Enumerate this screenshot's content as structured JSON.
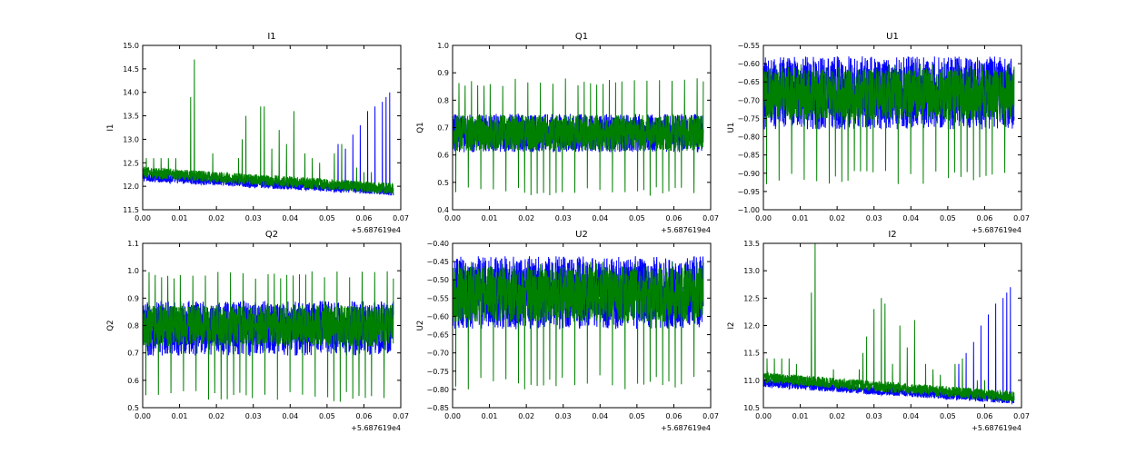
{
  "chart_data": [
    {
      "type": "line",
      "title": "I1",
      "xlabel": "",
      "ylabel": "I1",
      "xlim": [
        0.0,
        0.07
      ],
      "ylim": [
        11.5,
        15.0
      ],
      "x_ticks": [
        "0.00",
        "0.01",
        "0.02",
        "0.03",
        "0.04",
        "0.05",
        "0.06",
        "0.07"
      ],
      "y_ticks": [
        "11.5",
        "12.0",
        "12.5",
        "13.0",
        "13.5",
        "14.0",
        "14.5",
        "15.0"
      ],
      "x_offset": "+5.687619e4",
      "series": [
        {
          "name": "blue",
          "color": "#0000ff",
          "base_start": 12.2,
          "base_end": 11.9,
          "noise": 0.1,
          "spikes": [
            [
              0.053,
              12.9
            ],
            [
              0.055,
              12.8
            ],
            [
              0.057,
              13.1
            ],
            [
              0.059,
              13.3
            ],
            [
              0.061,
              13.6
            ],
            [
              0.063,
              13.7
            ],
            [
              0.065,
              13.8
            ],
            [
              0.066,
              13.9
            ],
            [
              0.067,
              14.0
            ]
          ]
        },
        {
          "name": "green",
          "color": "#008000",
          "base_start": 12.3,
          "base_end": 11.95,
          "noise": 0.12,
          "spikes": [
            [
              0.001,
              12.6
            ],
            [
              0.003,
              12.6
            ],
            [
              0.005,
              12.6
            ],
            [
              0.007,
              12.6
            ],
            [
              0.009,
              12.6
            ],
            [
              0.013,
              13.9
            ],
            [
              0.014,
              14.7
            ],
            [
              0.019,
              12.7
            ],
            [
              0.026,
              12.6
            ],
            [
              0.027,
              13.0
            ],
            [
              0.028,
              13.5
            ],
            [
              0.032,
              13.7
            ],
            [
              0.033,
              13.7
            ],
            [
              0.035,
              12.8
            ],
            [
              0.037,
              13.2
            ],
            [
              0.039,
              12.9
            ],
            [
              0.041,
              13.6
            ],
            [
              0.044,
              12.7
            ],
            [
              0.046,
              12.6
            ],
            [
              0.048,
              12.5
            ],
            [
              0.052,
              12.7
            ],
            [
              0.054,
              12.9
            ],
            [
              0.058,
              12.4
            ],
            [
              0.06,
              12.3
            ],
            [
              0.062,
              12.3
            ]
          ]
        }
      ]
    },
    {
      "type": "line",
      "title": "Q1",
      "xlabel": "",
      "ylabel": "Q1",
      "xlim": [
        0.0,
        0.07
      ],
      "ylim": [
        0.4,
        1.0
      ],
      "x_ticks": [
        "0.00",
        "0.01",
        "0.02",
        "0.03",
        "0.04",
        "0.05",
        "0.06",
        "0.07"
      ],
      "y_ticks": [
        "0.4",
        "0.5",
        "0.6",
        "0.7",
        "0.8",
        "0.9",
        "1.0"
      ],
      "x_offset": "+5.687619e4",
      "series": [
        {
          "name": "blue",
          "color": "#0000ff",
          "center": 0.68,
          "half_width": 0.07
        },
        {
          "name": "green",
          "color": "#008000",
          "center": 0.68,
          "half_width": 0.065,
          "spike_period": 0.0017,
          "spike_high": 0.88,
          "spike_low": 0.45
        }
      ]
    },
    {
      "type": "line",
      "title": "U1",
      "xlabel": "",
      "ylabel": "U1",
      "xlim": [
        0.0,
        0.07
      ],
      "ylim": [
        -1.0,
        -0.55
      ],
      "x_ticks": [
        "0.00",
        "0.01",
        "0.02",
        "0.03",
        "0.04",
        "0.05",
        "0.06",
        "0.07"
      ],
      "y_ticks": [
        "−1.00",
        "−0.95",
        "−0.90",
        "−0.85",
        "−0.80",
        "−0.75",
        "−0.70",
        "−0.65",
        "−0.60",
        "−0.55"
      ],
      "x_offset": "+5.687619e4",
      "series": [
        {
          "name": "blue",
          "color": "#0000ff",
          "center": -0.68,
          "half_width": 0.1
        },
        {
          "name": "green",
          "color": "#008000",
          "center": -0.685,
          "half_width": 0.07,
          "spike_period": 0.0017,
          "spike_high": -0.6,
          "spike_low": -0.93
        }
      ]
    },
    {
      "type": "line",
      "title": "Q2",
      "xlabel": "",
      "ylabel": "Q2",
      "xlim": [
        0.0,
        0.07
      ],
      "ylim": [
        0.5,
        1.1
      ],
      "x_ticks": [
        "0.00",
        "0.01",
        "0.02",
        "0.03",
        "0.04",
        "0.05",
        "0.06",
        "0.07"
      ],
      "y_ticks": [
        "0.5",
        "0.6",
        "0.7",
        "0.8",
        "0.9",
        "1.0",
        "1.1"
      ],
      "x_offset": "+5.687619e4",
      "series": [
        {
          "name": "blue",
          "color": "#0000ff",
          "center": 0.79,
          "half_width": 0.1
        },
        {
          "name": "green",
          "color": "#008000",
          "center": 0.8,
          "half_width": 0.075,
          "spike_period": 0.0017,
          "spike_high": 1.0,
          "spike_low": 0.52
        }
      ]
    },
    {
      "type": "line",
      "title": "U2",
      "xlabel": "",
      "ylabel": "U2",
      "xlim": [
        0.0,
        0.07
      ],
      "ylim": [
        -0.85,
        -0.4
      ],
      "x_ticks": [
        "0.00",
        "0.01",
        "0.02",
        "0.03",
        "0.04",
        "0.05",
        "0.06",
        "0.07"
      ],
      "y_ticks": [
        "−0.85",
        "−0.80",
        "−0.75",
        "−0.70",
        "−0.65",
        "−0.60",
        "−0.55",
        "−0.50",
        "−0.45",
        "−0.40"
      ],
      "x_offset": "+5.687619e4",
      "series": [
        {
          "name": "blue",
          "color": "#0000ff",
          "center": -0.535,
          "half_width": 0.1
        },
        {
          "name": "green",
          "color": "#008000",
          "center": -0.54,
          "half_width": 0.075,
          "spike_period": 0.0017,
          "spike_high": -0.45,
          "spike_low": -0.8
        }
      ]
    },
    {
      "type": "line",
      "title": "I2",
      "xlabel": "",
      "ylabel": "I2",
      "xlim": [
        0.0,
        0.07
      ],
      "ylim": [
        10.5,
        13.5
      ],
      "x_ticks": [
        "0.00",
        "0.01",
        "0.02",
        "0.03",
        "0.04",
        "0.05",
        "0.06",
        "0.07"
      ],
      "y_ticks": [
        "10.5",
        "11.0",
        "11.5",
        "12.0",
        "12.5",
        "13.0",
        "13.5"
      ],
      "x_offset": "+5.687619e4",
      "series": [
        {
          "name": "blue",
          "color": "#0000ff",
          "base_start": 10.95,
          "base_end": 10.65,
          "noise": 0.08,
          "spikes": [
            [
              0.053,
              11.3
            ],
            [
              0.055,
              11.5
            ],
            [
              0.057,
              11.7
            ],
            [
              0.059,
              12.0
            ],
            [
              0.061,
              12.2
            ],
            [
              0.063,
              12.4
            ],
            [
              0.065,
              12.5
            ],
            [
              0.066,
              12.6
            ],
            [
              0.067,
              12.7
            ]
          ]
        },
        {
          "name": "green",
          "color": "#008000",
          "base_start": 11.05,
          "base_end": 10.7,
          "noise": 0.1,
          "spikes": [
            [
              0.001,
              11.4
            ],
            [
              0.003,
              11.4
            ],
            [
              0.005,
              11.4
            ],
            [
              0.007,
              11.4
            ],
            [
              0.009,
              11.3
            ],
            [
              0.013,
              12.6
            ],
            [
              0.014,
              13.5
            ],
            [
              0.019,
              11.2
            ],
            [
              0.026,
              11.2
            ],
            [
              0.027,
              11.5
            ],
            [
              0.028,
              11.8
            ],
            [
              0.03,
              12.3
            ],
            [
              0.032,
              12.5
            ],
            [
              0.033,
              12.4
            ],
            [
              0.035,
              11.3
            ],
            [
              0.037,
              12.0
            ],
            [
              0.039,
              11.6
            ],
            [
              0.041,
              12.1
            ],
            [
              0.044,
              11.3
            ],
            [
              0.046,
              11.2
            ],
            [
              0.048,
              11.1
            ],
            [
              0.052,
              11.3
            ],
            [
              0.054,
              11.4
            ],
            [
              0.058,
              11.0
            ],
            [
              0.06,
              11.0
            ]
          ]
        }
      ]
    }
  ]
}
